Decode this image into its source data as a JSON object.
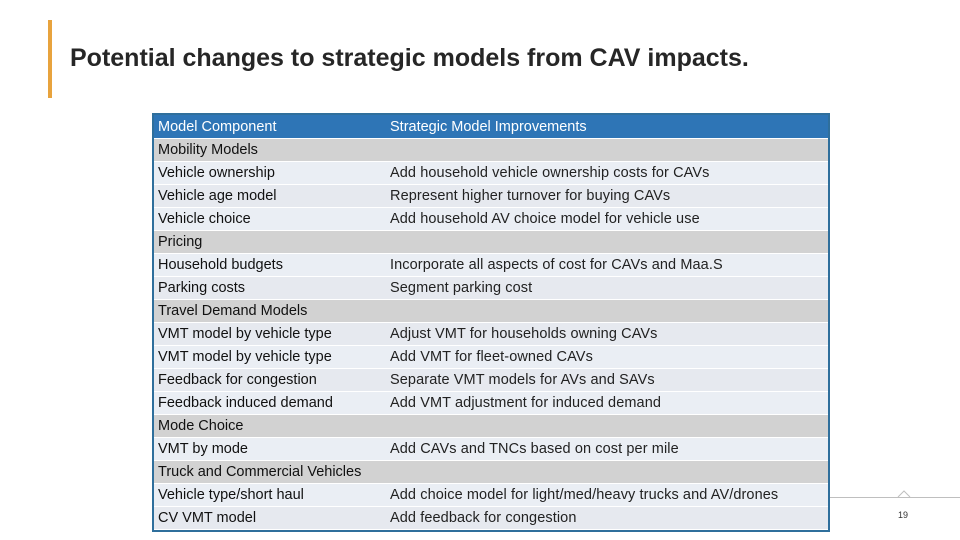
{
  "slide": {
    "title": "Potential changes to strategic models from CAV impacts.",
    "page_number": "19",
    "accent_color": "#e8a33d",
    "header_color": "#2e75b6"
  },
  "table": {
    "headers": [
      "Model Component",
      "Strategic Model Improvements"
    ],
    "rows": [
      {
        "type": "section",
        "component": "Mobility Models",
        "improvement": ""
      },
      {
        "type": "item",
        "component": "Vehicle ownership",
        "improvement": "Add household vehicle ownership costs for CAVs"
      },
      {
        "type": "item",
        "component": "Vehicle age model",
        "improvement": "Represent higher turnover for buying CAVs"
      },
      {
        "type": "item",
        "component": "Vehicle choice",
        "improvement": "Add household AV choice model for vehicle use"
      },
      {
        "type": "section",
        "component": "Pricing",
        "improvement": ""
      },
      {
        "type": "item",
        "component": "Household budgets",
        "improvement": "Incorporate all aspects of cost for CAVs and Maa.S"
      },
      {
        "type": "item",
        "component": "Parking costs",
        "improvement": "Segment parking cost"
      },
      {
        "type": "section",
        "component": "Travel Demand Models",
        "improvement": ""
      },
      {
        "type": "item",
        "component": "VMT model by vehicle type",
        "improvement": "Adjust VMT for households owning CAVs"
      },
      {
        "type": "item",
        "component": "VMT model by vehicle type",
        "improvement": "Add VMT for fleet-owned CAVs"
      },
      {
        "type": "item",
        "component": "Feedback for congestion",
        "improvement": "Separate VMT models for AVs and SAVs"
      },
      {
        "type": "item",
        "component": "Feedback induced demand",
        "improvement": "Add VMT adjustment for induced demand"
      },
      {
        "type": "section",
        "component": "Mode Choice",
        "improvement": ""
      },
      {
        "type": "item",
        "component": "VMT by mode",
        "improvement": "Add CAVs and TNCs based on cost per mile"
      },
      {
        "type": "section",
        "component": "Truck and Commercial Vehicles",
        "improvement": ""
      },
      {
        "type": "item",
        "component": "Vehicle type/short haul",
        "improvement": "Add choice model for light/med/heavy trucks and AV/drones"
      },
      {
        "type": "item",
        "component": "CV VMT model",
        "improvement": "Add feedback for congestion"
      }
    ]
  }
}
